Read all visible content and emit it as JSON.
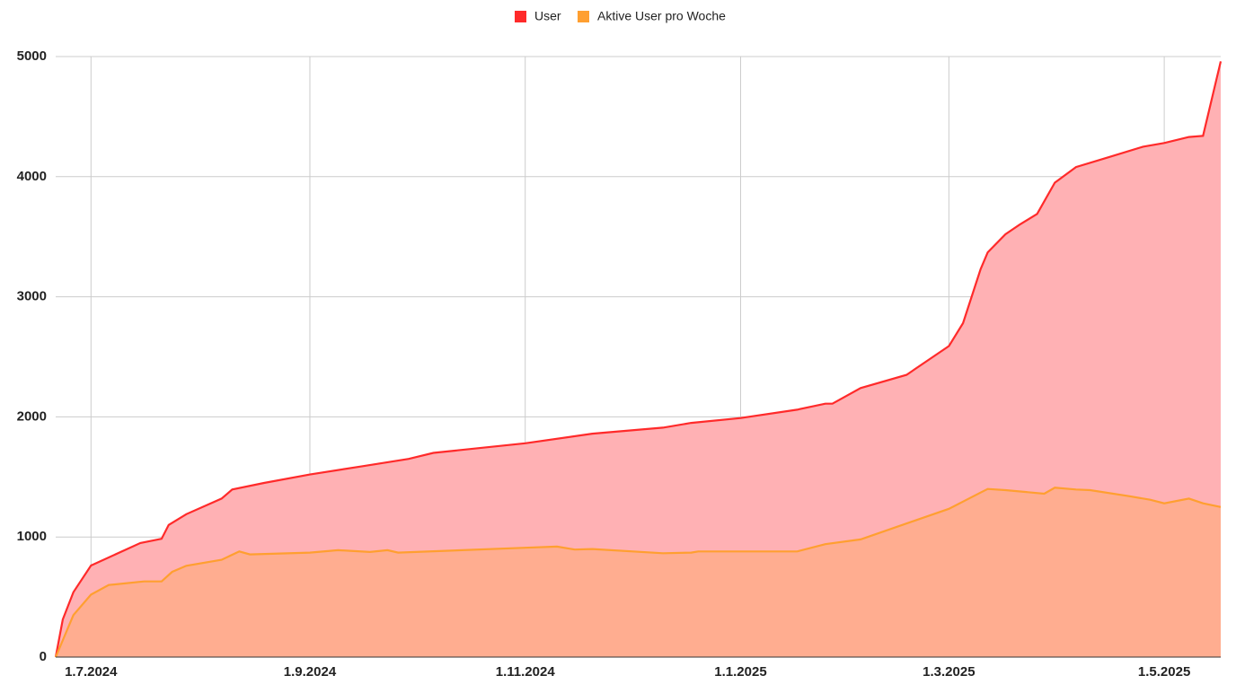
{
  "chart_data": {
    "type": "area",
    "xlim": [
      "2024-06-21",
      "2025-05-17"
    ],
    "xticks": [
      {
        "value": "2024-07-01",
        "label": "1.7.2024"
      },
      {
        "value": "2024-09-01",
        "label": "1.9.2024"
      },
      {
        "value": "2024-11-01",
        "label": "1.11.2024"
      },
      {
        "value": "2025-01-01",
        "label": "1.1.2025"
      },
      {
        "value": "2025-03-01",
        "label": "1.3.2025"
      },
      {
        "value": "2025-05-01",
        "label": "1.5.2025"
      }
    ],
    "ylim": [
      0,
      5000
    ],
    "yticks": [
      0,
      1000,
      2000,
      3000,
      4000,
      5000
    ],
    "grid": true,
    "legend": "top",
    "series": [
      {
        "name": "User",
        "color": "#ff2a2a",
        "fill": "#ffb1b4",
        "x": [
          "2024-06-21",
          "2024-06-23",
          "2024-06-26",
          "2024-07-01",
          "2024-07-15",
          "2024-07-21",
          "2024-07-23",
          "2024-07-28",
          "2024-08-07",
          "2024-08-10",
          "2024-08-19",
          "2024-09-01",
          "2024-09-16",
          "2024-09-29",
          "2024-10-06",
          "2024-11-01",
          "2024-11-20",
          "2024-12-10",
          "2024-12-18",
          "2025-01-01",
          "2025-01-17",
          "2025-01-25",
          "2025-01-27",
          "2025-02-04",
          "2025-02-17",
          "2025-03-01",
          "2025-03-05",
          "2025-03-10",
          "2025-03-12",
          "2025-03-17",
          "2025-03-21",
          "2025-03-26",
          "2025-03-31",
          "2025-04-06",
          "2025-04-15",
          "2025-04-25",
          "2025-05-01",
          "2025-05-08",
          "2025-05-12",
          "2025-05-17"
        ],
        "values": [
          0,
          314,
          540,
          762,
          950,
          985,
          1100,
          1190,
          1320,
          1395,
          1450,
          1520,
          1590,
          1650,
          1700,
          1780,
          1860,
          1910,
          1950,
          1990,
          2060,
          2110,
          2110,
          2240,
          2350,
          2590,
          2780,
          3230,
          3370,
          3520,
          3600,
          3690,
          3950,
          4080,
          4160,
          4250,
          4280,
          4330,
          4340,
          4960
        ]
      },
      {
        "name": "Aktive User pro Woche",
        "color": "#ff9f30",
        "fill": "rgba(255,170,120,0.6)",
        "x": [
          "2024-06-21",
          "2024-06-26",
          "2024-07-01",
          "2024-07-06",
          "2024-07-16",
          "2024-07-21",
          "2024-07-24",
          "2024-07-28",
          "2024-08-07",
          "2024-08-12",
          "2024-08-15",
          "2024-09-01",
          "2024-09-09",
          "2024-09-18",
          "2024-09-23",
          "2024-09-26",
          "2024-11-01",
          "2024-11-10",
          "2024-11-15",
          "2024-11-20",
          "2024-12-10",
          "2024-12-18",
          "2024-12-20",
          "2025-01-01",
          "2025-01-17",
          "2025-01-25",
          "2025-02-04",
          "2025-03-01",
          "2025-03-10",
          "2025-03-12",
          "2025-03-17",
          "2025-03-28",
          "2025-03-31",
          "2025-04-06",
          "2025-04-10",
          "2025-04-21",
          "2025-04-27",
          "2025-05-01",
          "2025-05-08",
          "2025-05-12",
          "2025-05-17"
        ],
        "values": [
          0,
          350,
          520,
          600,
          630,
          630,
          710,
          760,
          810,
          880,
          855,
          870,
          890,
          875,
          890,
          870,
          910,
          920,
          895,
          900,
          865,
          870,
          880,
          880,
          880,
          940,
          980,
          1235,
          1370,
          1400,
          1390,
          1360,
          1410,
          1395,
          1390,
          1340,
          1310,
          1280,
          1320,
          1280,
          1250
        ]
      }
    ]
  }
}
